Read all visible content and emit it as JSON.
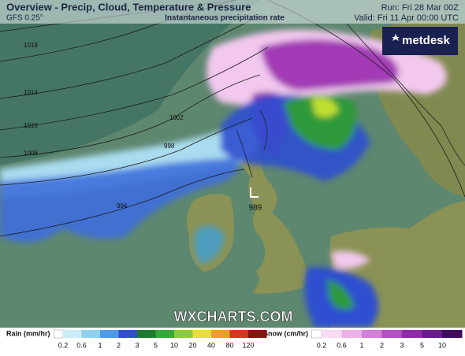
{
  "header": {
    "title": "Overview - Precip, Cloud, Temperature & Pressure",
    "model": "GFS 0.25°",
    "subtitle": "Instantaneous precipitation rate",
    "run": "Run: Fri 28 Mar 00Z",
    "valid": "Valid: Fri 11 Apr 00:00 UTC"
  },
  "logo": "metdesk",
  "isobars": [
    "1018",
    "1014",
    "1010",
    "1006",
    "1002",
    "998",
    "994"
  ],
  "low": "989",
  "watermark": "WXCHARTS.COM",
  "rain_legend": {
    "title": "Rain (mm/hr)",
    "labels": [
      "0.2",
      "0.6",
      "1",
      "2",
      "3",
      "5",
      "10",
      "20",
      "40",
      "80",
      "120"
    ]
  },
  "snow_legend": {
    "title": "Snow (cm/hr)",
    "labels": [
      "0.2",
      "0.6",
      "1",
      "2",
      "3",
      "5",
      "10"
    ]
  }
}
